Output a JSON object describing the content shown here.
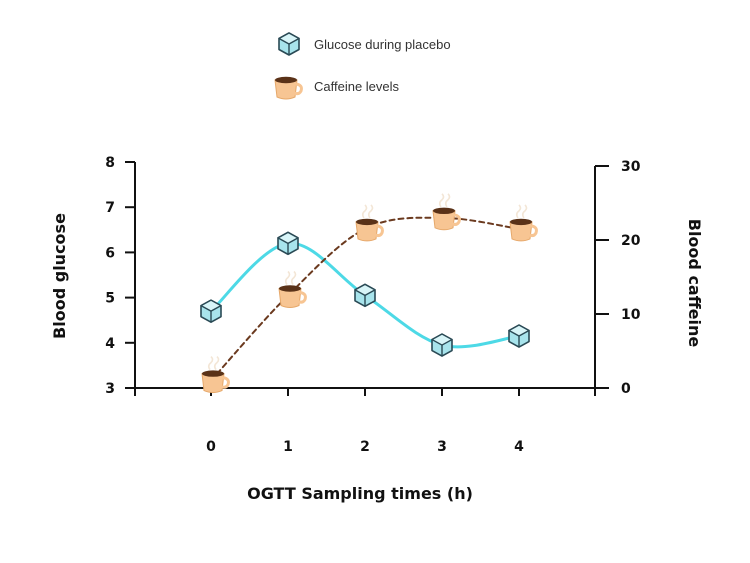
{
  "chart_data": {
    "type": "line",
    "xlabel": "OGTT Sampling times (h)",
    "ylabel_left": "Blood glucose",
    "ylabel_right": "Blood caffeine",
    "x": [
      0,
      1,
      2,
      3,
      4
    ],
    "x_ticks": [
      "0",
      "1",
      "2",
      "3",
      "4"
    ],
    "ylim_left": [
      3,
      8
    ],
    "yticks_left": [
      "3",
      "4",
      "5",
      "6",
      "7",
      "8"
    ],
    "ylim_right": [
      0,
      30
    ],
    "yticks_right": [
      "0",
      "10",
      "20",
      "30"
    ],
    "legend_position": "top-center",
    "grid": false,
    "series": [
      {
        "name": "Glucose during placebo",
        "axis": "left",
        "values": [
          4.7,
          6.2,
          5.05,
          3.95,
          4.15
        ],
        "color": "#4dd9e6",
        "line_style": "solid",
        "marker_icon": "ice-cube-icon"
      },
      {
        "name": "Caffeine levels",
        "axis": "right",
        "values": [
          1,
          12.5,
          21.5,
          23,
          21.5
        ],
        "color": "#6b3a1f",
        "line_style": "dashed",
        "marker_icon": "coffee-cup-icon"
      }
    ]
  }
}
